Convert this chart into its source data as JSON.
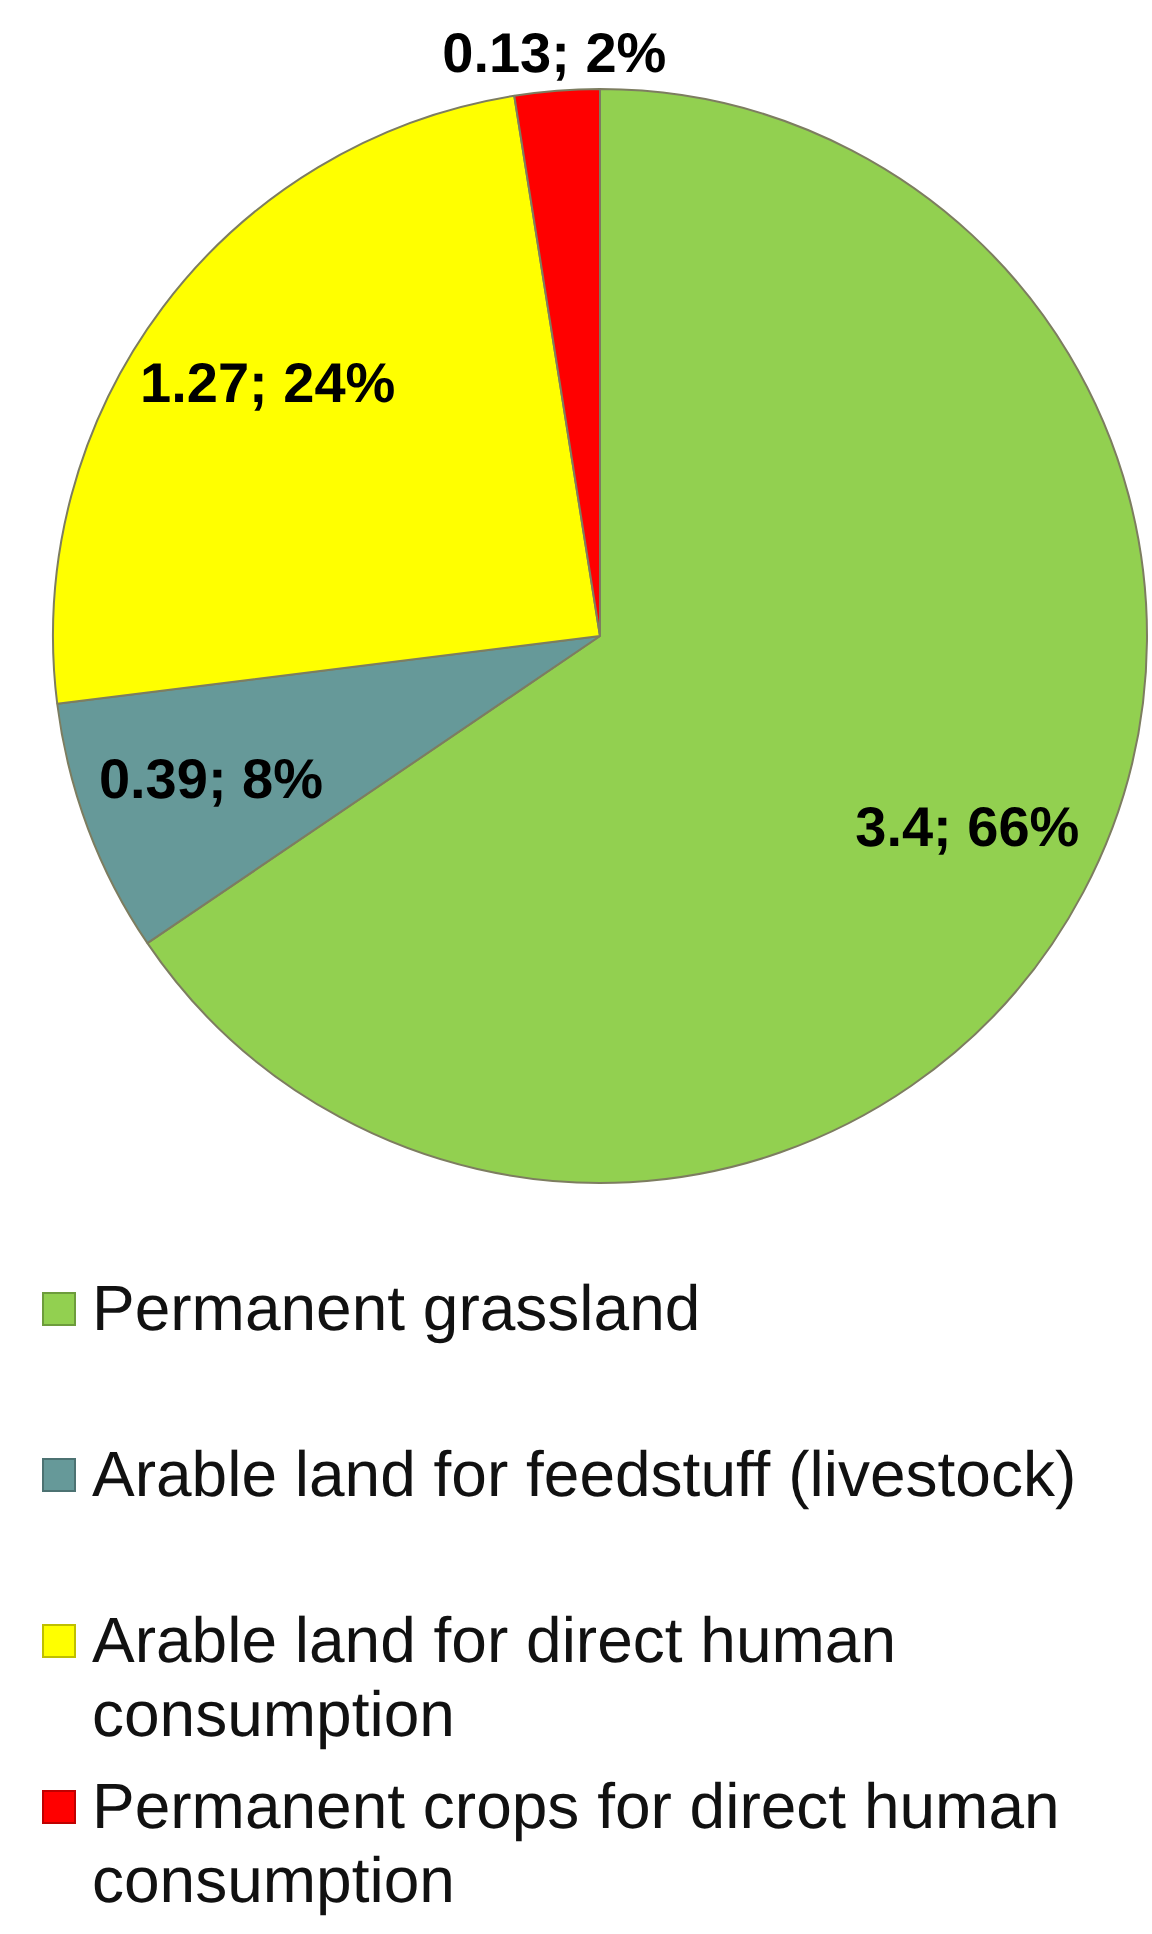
{
  "chart_data": {
    "type": "pie",
    "categories": [
      "Permanent grassland",
      "Arable land for feedstuff (livestock)",
      "Arable land for direct human consumption",
      "Permanent crops for direct human consumption"
    ],
    "values": [
      3.4,
      0.39,
      1.27,
      0.13
    ],
    "value_labels": [
      "3.4; 66%",
      "0.39; 8%",
      "1.27; 24%",
      "0.13; 2%"
    ],
    "colors": [
      "#92d050",
      "#669999",
      "#ffff00",
      "#ff0000"
    ],
    "legend": "bottom"
  }
}
